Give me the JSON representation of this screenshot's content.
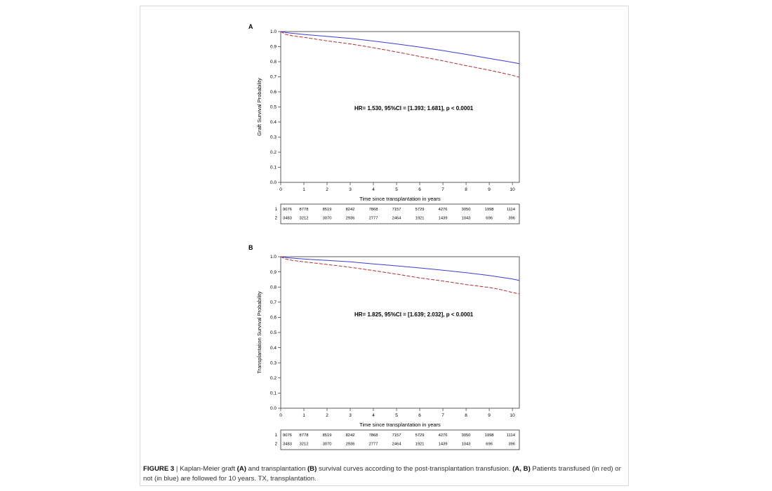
{
  "panels": [
    {
      "id": "A",
      "label": "A",
      "chart_data": {
        "type": "line",
        "title": "",
        "xlabel": "Time since transplantation in years",
        "ylabel": "Graft Survival Probability",
        "xlim": [
          0,
          10.3
        ],
        "ylim": [
          0,
          1.0
        ],
        "xticks": [
          "0",
          "1",
          "2",
          "3",
          "4",
          "5",
          "6",
          "7",
          "8",
          "9",
          "10"
        ],
        "yticks": [
          "0.0",
          "0.1",
          "0.2",
          "0.3",
          "0.4",
          "0.5",
          "0.6",
          "0.7",
          "0.8",
          "0.9",
          "1.0"
        ],
        "annotation": "HR= 1.530, 95%CI = [1.393; 1.681],  p < 0.0001",
        "series": [
          {
            "color": "#3b3bd6",
            "dash": "solid",
            "points": [
              [
                0,
                1.0
              ],
              [
                0.3,
                0.992
              ],
              [
                1,
                0.981
              ],
              [
                2,
                0.968
              ],
              [
                3,
                0.955
              ],
              [
                4,
                0.937
              ],
              [
                5,
                0.918
              ],
              [
                6,
                0.897
              ],
              [
                7,
                0.874
              ],
              [
                8,
                0.849
              ],
              [
                9,
                0.822
              ],
              [
                10,
                0.796
              ],
              [
                10.3,
                0.787
              ]
            ]
          },
          {
            "color": "#b03030",
            "dash": "dashed",
            "points": [
              [
                0,
                1.0
              ],
              [
                0.2,
                0.982
              ],
              [
                0.5,
                0.972
              ],
              [
                1,
                0.962
              ],
              [
                2,
                0.938
              ],
              [
                3,
                0.918
              ],
              [
                4,
                0.893
              ],
              [
                5,
                0.865
              ],
              [
                6,
                0.835
              ],
              [
                7,
                0.806
              ],
              [
                8,
                0.774
              ],
              [
                9,
                0.744
              ],
              [
                10,
                0.71
              ],
              [
                10.3,
                0.697
              ]
            ]
          }
        ]
      },
      "risk_table": {
        "row_labels": [
          "1",
          "2"
        ],
        "rows": [
          [
            "9076",
            "8778",
            "8519",
            "8242",
            "7868",
            "7157",
            "5729",
            "4276",
            "3050",
            "1998",
            "1114"
          ],
          [
            "3483",
            "3212",
            "3070",
            "2936",
            "2777",
            "2464",
            "1921",
            "1439",
            "1043",
            "696",
            "396"
          ]
        ]
      }
    },
    {
      "id": "B",
      "label": "B",
      "chart_data": {
        "type": "line",
        "title": "",
        "xlabel": "Time since transplantation in years",
        "ylabel": "Transplantation Survival Probability",
        "xlim": [
          0,
          10.3
        ],
        "ylim": [
          0,
          1.0
        ],
        "xticks": [
          "0",
          "1",
          "2",
          "3",
          "4",
          "5",
          "6",
          "7",
          "8",
          "9",
          "10"
        ],
        "yticks": [
          "0.0",
          "0.1",
          "0.2",
          "0.3",
          "0.4",
          "0.5",
          "0.6",
          "0.7",
          "0.8",
          "0.9",
          "1.0"
        ],
        "annotation": "HR= 1.825, 95%CI = [1.639; 2.032],  p < 0.0001",
        "series": [
          {
            "color": "#3b3bd6",
            "dash": "solid",
            "points": [
              [
                0,
                1.0
              ],
              [
                0.3,
                0.993
              ],
              [
                1,
                0.985
              ],
              [
                2,
                0.976
              ],
              [
                3,
                0.966
              ],
              [
                4,
                0.953
              ],
              [
                5,
                0.94
              ],
              [
                6,
                0.926
              ],
              [
                7,
                0.911
              ],
              [
                8,
                0.895
              ],
              [
                9,
                0.876
              ],
              [
                10,
                0.853
              ],
              [
                10.3,
                0.843
              ]
            ]
          },
          {
            "color": "#b03030",
            "dash": "dashed",
            "points": [
              [
                0,
                1.0
              ],
              [
                0.2,
                0.985
              ],
              [
                0.5,
                0.976
              ],
              [
                1,
                0.966
              ],
              [
                2,
                0.949
              ],
              [
                3,
                0.93
              ],
              [
                4,
                0.909
              ],
              [
                5,
                0.885
              ],
              [
                6,
                0.86
              ],
              [
                7,
                0.84
              ],
              [
                8,
                0.816
              ],
              [
                9,
                0.797
              ],
              [
                9.5,
                0.783
              ],
              [
                10,
                0.764
              ],
              [
                10.3,
                0.755
              ]
            ]
          }
        ]
      },
      "risk_table": {
        "row_labels": [
          "1",
          "2"
        ],
        "rows": [
          [
            "9076",
            "8778",
            "8519",
            "8242",
            "7868",
            "7157",
            "5729",
            "4276",
            "3050",
            "1998",
            "1114"
          ],
          [
            "3483",
            "3212",
            "3070",
            "2936",
            "2777",
            "2464",
            "1921",
            "1439",
            "1043",
            "696",
            "396"
          ]
        ]
      }
    }
  ],
  "caption": {
    "figure_label": "FIGURE 3",
    "separator": " | ",
    "t1": "Kaplan-Meier graft ",
    "b1": "(A)",
    "t2": " and transplantation ",
    "b2": "(B)",
    "t3": " survival curves according to the post-transplantation transfusion. ",
    "b3": "(A, B)",
    "t4": " Patients transfused (in red) or not (in blue) are followed for 10 years. TX, transplantation."
  }
}
